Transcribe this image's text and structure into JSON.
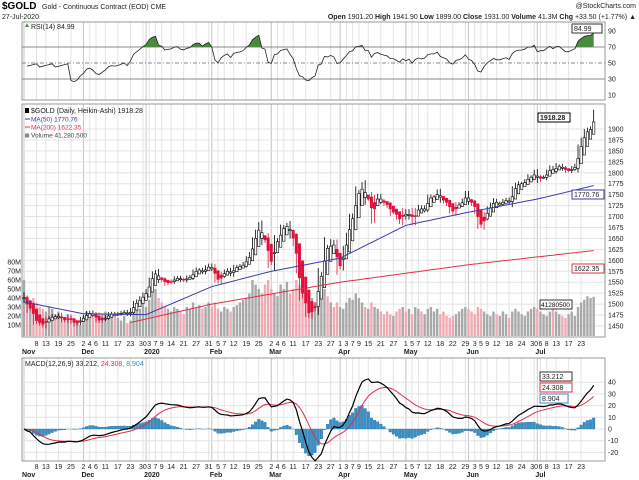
{
  "header": {
    "symbol": "$GOLD",
    "name": "Gold - Continuous Contract (EOD) CME",
    "date": "27-Jul-2020",
    "watermark": "@StockCharts.com",
    "open_label": "Open",
    "open": "1901.20",
    "high_label": "High",
    "high": "1941.90",
    "low_label": "Low",
    "low": "1899.00",
    "close_label": "Close",
    "close": "1931.00",
    "volume_label": "Volume",
    "volume": "41.3M",
    "chg_label": "Chg",
    "chg": "+33.50 (+1.77%)",
    "chg_arrow": "▲"
  },
  "legend": {
    "rsi": "RSI(14) 84.99",
    "price": "$GOLD (Daily, Heikin-Ashi) 1918.28",
    "ma50": "MA(50) 1770.76",
    "ma200": "MA(200) 1622.35",
    "volume": "Volume 41,280,500",
    "macd": "MACD(12,26,9) 33.212,",
    "macd_signal": "24.308,",
    "macd_hist": "8.904"
  },
  "badges": {
    "rsi": "84.99",
    "price": "1918.28",
    "ma50": "1770.76",
    "ma200": "1622.35",
    "volume": "41280500",
    "macd": "33.212",
    "signal": "24.308",
    "hist": "8.904"
  },
  "colors": {
    "up": "#000000",
    "down": "#e0103a",
    "ma50": "#3b3ba8",
    "ma200": "#e0304a",
    "vol_up": "#a9a9a9",
    "vol_down": "#f0aab4",
    "rsi_fill": "#4a8a3e",
    "hist": "#3a8fc4"
  },
  "chart_data": {
    "type": "candlestick",
    "title": "$GOLD Gold - Continuous Contract (EOD) CME",
    "price_axis": {
      "labels": [
        1450,
        1475,
        1500,
        1525,
        1550,
        1575,
        1600,
        1625,
        1650,
        1675,
        1700,
        1725,
        1750,
        1775,
        1800,
        1825,
        1850,
        1875,
        1900
      ],
      "range": [
        1427,
        1950
      ]
    },
    "volume_axis": {
      "labels": [
        "10M",
        "20M",
        "30M",
        "40M",
        "50M",
        "60M",
        "70M",
        "80M"
      ],
      "values": [
        10,
        20,
        30,
        40,
        50,
        60,
        70,
        80
      ]
    },
    "rsi_axis": {
      "labels": [
        90,
        70,
        50,
        30,
        10
      ]
    },
    "macd_axis": {
      "labels": [
        40,
        30,
        20,
        10,
        0,
        -10,
        -20
      ]
    },
    "month_labels": [
      [
        "Nov",
        0
      ],
      [
        "Dec",
        19
      ],
      [
        "2020",
        39
      ],
      [
        "Feb",
        60
      ],
      [
        "Mar",
        79
      ],
      [
        "Apr",
        101
      ],
      [
        "May",
        122
      ],
      [
        "Jun",
        142
      ],
      [
        "Jul",
        164
      ]
    ],
    "day_ticks": [
      [
        "8",
        4
      ],
      [
        "13",
        7
      ],
      [
        "19",
        11
      ],
      [
        "25",
        15
      ],
      [
        "2",
        19
      ],
      [
        "4",
        21
      ],
      [
        "6",
        23
      ],
      [
        "11",
        26
      ],
      [
        "17",
        30
      ],
      [
        "23",
        34
      ],
      [
        "30",
        38
      ],
      [
        "3",
        40
      ],
      [
        "7",
        42
      ],
      [
        "9",
        44
      ],
      [
        "14",
        47
      ],
      [
        "21",
        51
      ],
      [
        "27",
        55
      ],
      [
        "31",
        59
      ],
      [
        "5",
        62
      ],
      [
        "7",
        64
      ],
      [
        "12",
        67
      ],
      [
        "19",
        71
      ],
      [
        "25",
        75
      ],
      [
        "2",
        79
      ],
      [
        "4",
        81
      ],
      [
        "6",
        83
      ],
      [
        "11",
        86
      ],
      [
        "17",
        90
      ],
      [
        "23",
        94
      ],
      [
        "27",
        98
      ],
      [
        "1",
        101
      ],
      [
        "3",
        103
      ],
      [
        "7",
        105
      ],
      [
        "9",
        107
      ],
      [
        "15",
        110
      ],
      [
        "21",
        114
      ],
      [
        "27",
        118
      ],
      [
        "1",
        122
      ],
      [
        "5",
        124
      ],
      [
        "7",
        126
      ],
      [
        "12",
        129
      ],
      [
        "18",
        133
      ],
      [
        "22",
        137
      ],
      [
        "29",
        141
      ],
      [
        "3",
        144
      ],
      [
        "5",
        146
      ],
      [
        "9",
        148
      ],
      [
        "12",
        151
      ],
      [
        "18",
        155
      ],
      [
        "24",
        159
      ],
      [
        "30",
        163
      ],
      [
        "6",
        165
      ],
      [
        "8",
        167
      ],
      [
        "13",
        170
      ],
      [
        "17",
        174
      ],
      [
        "23",
        178
      ]
    ],
    "closes": [
      1510,
      1490,
      1492,
      1465,
      1460,
      1456,
      1452,
      1464,
      1468,
      1472,
      1471,
      1474,
      1465,
      1463,
      1470,
      1462,
      1455,
      1458,
      1465,
      1470,
      1478,
      1480,
      1475,
      1465,
      1462,
      1466,
      1470,
      1476,
      1478,
      1477,
      1478,
      1480,
      1482,
      1478,
      1485,
      1499,
      1505,
      1512,
      1520,
      1528,
      1550,
      1566,
      1572,
      1557,
      1555,
      1548,
      1550,
      1552,
      1558,
      1560,
      1556,
      1555,
      1560,
      1562,
      1572,
      1578,
      1578,
      1574,
      1582,
      1587,
      1581,
      1560,
      1553,
      1566,
      1573,
      1577,
      1570,
      1582,
      1585,
      1587,
      1591,
      1602,
      1612,
      1640,
      1660,
      1678,
      1648,
      1645,
      1600,
      1595,
      1640,
      1645,
      1670,
      1675,
      1680,
      1660,
      1642,
      1590,
      1530,
      1520,
      1485,
      1475,
      1490,
      1498,
      1560,
      1567,
      1630,
      1625,
      1640,
      1630,
      1585,
      1590,
      1620,
      1650,
      1690,
      1700,
      1750,
      1755,
      1770,
      1740,
      1740,
      1700,
      1735,
      1745,
      1735,
      1730,
      1725,
      1710,
      1710,
      1700,
      1690,
      1710,
      1700,
      1710,
      1690,
      1710,
      1720,
      1715,
      1720,
      1740,
      1745,
      1745,
      1755,
      1740,
      1735,
      1730,
      1715,
      1710,
      1725,
      1728,
      1735,
      1750,
      1735,
      1730,
      1715,
      1685,
      1680,
      1700,
      1715,
      1725,
      1735,
      1730,
      1730,
      1735,
      1738,
      1733,
      1758,
      1770,
      1775,
      1775,
      1780,
      1790,
      1790,
      1800,
      1785,
      1790,
      1790,
      1800,
      1810,
      1805,
      1815,
      1815,
      1810,
      1805,
      1805,
      1810,
      1815,
      1850,
      1870,
      1890,
      1897,
      1901,
      1931
    ],
    "volumes_millions": [
      60,
      42,
      38,
      40,
      35,
      30,
      28,
      25,
      30,
      28,
      22,
      25,
      20,
      18,
      22,
      20,
      18,
      15,
      10,
      20,
      25,
      22,
      18,
      20,
      24,
      22,
      25,
      18,
      20,
      22,
      18,
      15,
      20,
      12,
      15,
      25,
      30,
      28,
      35,
      30,
      38,
      55,
      50,
      40,
      35,
      30,
      28,
      25,
      30,
      28,
      25,
      22,
      30,
      28,
      35,
      30,
      32,
      28,
      30,
      35,
      30,
      35,
      28,
      25,
      30,
      28,
      25,
      30,
      32,
      35,
      38,
      40,
      45,
      60,
      55,
      50,
      45,
      55,
      60,
      50,
      45,
      42,
      55,
      50,
      58,
      45,
      50,
      60,
      55,
      52,
      48,
      45,
      40,
      35,
      45,
      40,
      50,
      42,
      35,
      30,
      35,
      30,
      28,
      35,
      40,
      38,
      45,
      40,
      35,
      30,
      28,
      35,
      30,
      28,
      25,
      22,
      25,
      22,
      20,
      25,
      28,
      30,
      25,
      28,
      22,
      30,
      28,
      25,
      22,
      28,
      30,
      25,
      28,
      22,
      25,
      20,
      18,
      20,
      22,
      25,
      28,
      30,
      28,
      25,
      22,
      30,
      28,
      25,
      22,
      20,
      25,
      22,
      20,
      25,
      22,
      18,
      25,
      28,
      25,
      22,
      20,
      25,
      28,
      30,
      28,
      25,
      22,
      20,
      25,
      28,
      25,
      22,
      20,
      18,
      22,
      25,
      20,
      30,
      35,
      38,
      42,
      40,
      41.28
    ],
    "ma50_points": [
      [
        0,
        1505
      ],
      [
        19,
        1478
      ],
      [
        39,
        1476
      ],
      [
        60,
        1540
      ],
      [
        79,
        1575
      ],
      [
        90,
        1590
      ],
      [
        101,
        1605
      ],
      [
        122,
        1680
      ],
      [
        142,
        1710
      ],
      [
        164,
        1740
      ],
      [
        182,
        1770.76
      ]
    ],
    "ma200_points": [
      [
        34,
        1458
      ],
      [
        60,
        1500
      ],
      [
        101,
        1550
      ],
      [
        142,
        1590
      ],
      [
        182,
        1622.35
      ]
    ]
  }
}
